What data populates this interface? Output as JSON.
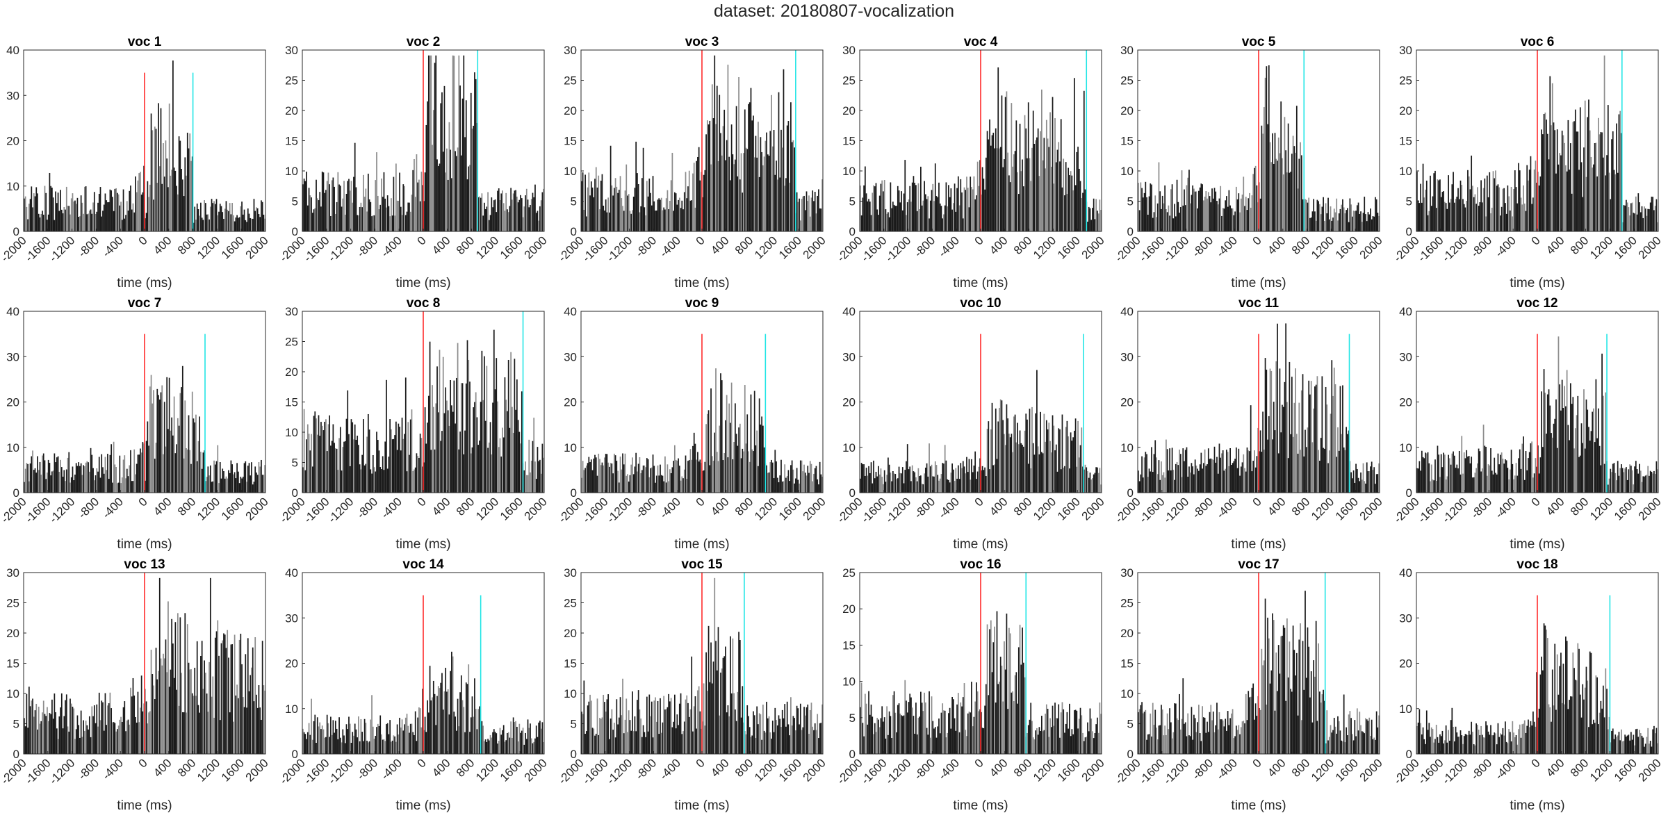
{
  "figure_title": "dataset: 20180807-vocalization",
  "colors": {
    "bars_dark": "#1a1a1a",
    "bars_light": "#8c8c8c",
    "onset_line": "#ff2a2a",
    "offset_line": "#22e5e5",
    "axes": "#262626"
  },
  "chart_data": [
    {
      "type": "bar",
      "title": "voc 1",
      "xlabel": "time (ms)",
      "xlim": [
        -2000,
        2000
      ],
      "ylim": [
        0,
        40
      ],
      "yticks": [
        0,
        10,
        20,
        30,
        40
      ],
      "xticks": [
        -2000,
        -1600,
        -1200,
        -800,
        -400,
        0,
        400,
        800,
        1200,
        1600,
        2000
      ],
      "onset_ms": 0,
      "offset_ms": 800,
      "marker_height": 35,
      "profile": {
        "base": 7,
        "peak": 20,
        "peak_time_ms": 200,
        "plateau_end_ms": 800,
        "post": 5
      }
    },
    {
      "type": "bar",
      "title": "voc 2",
      "xlabel": "time (ms)",
      "xlim": [
        -2000,
        2000
      ],
      "ylim": [
        0,
        30
      ],
      "yticks": [
        0,
        5,
        10,
        15,
        20,
        25,
        30
      ],
      "xticks": [
        -2000,
        -1600,
        -1200,
        -800,
        -400,
        0,
        400,
        800,
        1200,
        1600,
        2000
      ],
      "onset_ms": 0,
      "offset_ms": 900,
      "marker_height": 30,
      "profile": {
        "base": 7,
        "peak": 27,
        "peak_time_ms": 100,
        "plateau_end_ms": 900,
        "post": 5
      }
    },
    {
      "type": "bar",
      "title": "voc 3",
      "xlabel": "time (ms)",
      "xlim": [
        -2000,
        2000
      ],
      "ylim": [
        0,
        30
      ],
      "yticks": [
        0,
        5,
        10,
        15,
        20,
        25,
        30
      ],
      "xticks": [
        -2000,
        -1600,
        -1200,
        -800,
        -400,
        0,
        400,
        800,
        1200,
        1600,
        2000
      ],
      "onset_ms": 0,
      "offset_ms": 1550,
      "marker_height": 30,
      "profile": {
        "base": 7,
        "peak": 20,
        "peak_time_ms": 200,
        "plateau_end_ms": 1550,
        "post": 5
      }
    },
    {
      "type": "bar",
      "title": "voc 4",
      "xlabel": "time (ms)",
      "xlim": [
        -2000,
        2000
      ],
      "ylim": [
        0,
        30
      ],
      "yticks": [
        0,
        5,
        10,
        15,
        20,
        25,
        30
      ],
      "xticks": [
        -2000,
        -1600,
        -1200,
        -800,
        -400,
        0,
        400,
        800,
        1200,
        1600,
        2000
      ],
      "onset_ms": 0,
      "offset_ms": 1750,
      "marker_height": 30,
      "profile": {
        "base": 6,
        "peak": 19,
        "peak_time_ms": 200,
        "plateau_end_ms": 1750,
        "post": 4
      }
    },
    {
      "type": "bar",
      "title": "voc 5",
      "xlabel": "time (ms)",
      "xlim": [
        -2000,
        2000
      ],
      "ylim": [
        0,
        30
      ],
      "yticks": [
        0,
        5,
        10,
        15,
        20,
        25,
        30
      ],
      "xticks": [
        -2000,
        -1600,
        -1200,
        -800,
        -400,
        0,
        400,
        800,
        1200,
        1600,
        2000
      ],
      "onset_ms": 0,
      "offset_ms": 750,
      "marker_height": 30,
      "profile": {
        "base": 6,
        "peak": 20,
        "peak_time_ms": 100,
        "plateau_end_ms": 750,
        "post": 4
      }
    },
    {
      "type": "bar",
      "title": "voc 6",
      "xlabel": "time (ms)",
      "xlim": [
        -2000,
        2000
      ],
      "ylim": [
        0,
        30
      ],
      "yticks": [
        0,
        5,
        10,
        15,
        20,
        25,
        30
      ],
      "xticks": [
        -2000,
        -1600,
        -1200,
        -800,
        -400,
        0,
        400,
        800,
        1200,
        1600,
        2000
      ],
      "onset_ms": 0,
      "offset_ms": 1400,
      "marker_height": 30,
      "profile": {
        "base": 7,
        "peak": 18,
        "peak_time_ms": 150,
        "plateau_end_ms": 1400,
        "post": 4
      }
    },
    {
      "type": "bar",
      "title": "voc 7",
      "xlabel": "time (ms)",
      "xlim": [
        -2000,
        2000
      ],
      "ylim": [
        0,
        40
      ],
      "yticks": [
        0,
        10,
        20,
        30,
        40
      ],
      "xticks": [
        -2000,
        -1600,
        -1200,
        -800,
        -400,
        0,
        400,
        800,
        1200,
        1600,
        2000
      ],
      "onset_ms": 0,
      "offset_ms": 1000,
      "marker_height": 35,
      "profile": {
        "base": 6,
        "peak": 20,
        "peak_time_ms": 100,
        "plateau_end_ms": 1000,
        "post": 5
      }
    },
    {
      "type": "bar",
      "title": "voc 8",
      "xlabel": "time (ms)",
      "xlim": [
        -2000,
        2000
      ],
      "ylim": [
        0,
        30
      ],
      "yticks": [
        0,
        5,
        10,
        15,
        20,
        25,
        30
      ],
      "xticks": [
        -2000,
        -1600,
        -1200,
        -800,
        -400,
        0,
        400,
        800,
        1200,
        1600,
        2000
      ],
      "onset_ms": 0,
      "offset_ms": 1650,
      "marker_height": 30,
      "profile": {
        "base": 9,
        "peak": 19,
        "peak_time_ms": 300,
        "plateau_end_ms": 1650,
        "post": 6
      }
    },
    {
      "type": "bar",
      "title": "voc 9",
      "xlabel": "time (ms)",
      "xlim": [
        -2000,
        2000
      ],
      "ylim": [
        0,
        40
      ],
      "yticks": [
        0,
        10,
        20,
        30,
        40
      ],
      "xticks": [
        -2000,
        -1600,
        -1200,
        -800,
        -400,
        0,
        400,
        800,
        1200,
        1600,
        2000
      ],
      "onset_ms": 0,
      "offset_ms": 1050,
      "marker_height": 35,
      "profile": {
        "base": 6,
        "peak": 20,
        "peak_time_ms": 200,
        "plateau_end_ms": 1050,
        "post": 5
      }
    },
    {
      "type": "bar",
      "title": "voc 10",
      "xlabel": "time (ms)",
      "xlim": [
        -2000,
        2000
      ],
      "ylim": [
        0,
        40
      ],
      "yticks": [
        0,
        10,
        20,
        30,
        40
      ],
      "xticks": [
        -2000,
        -1600,
        -1200,
        -800,
        -400,
        0,
        400,
        800,
        1200,
        1600,
        2000
      ],
      "onset_ms": 0,
      "offset_ms": 1700,
      "marker_height": 35,
      "profile": {
        "base": 5,
        "peak": 15,
        "peak_time_ms": 200,
        "plateau_end_ms": 1700,
        "post": 4
      }
    },
    {
      "type": "bar",
      "title": "voc 11",
      "xlabel": "time (ms)",
      "xlim": [
        -2000,
        2000
      ],
      "ylim": [
        0,
        40
      ],
      "yticks": [
        0,
        10,
        20,
        30,
        40
      ],
      "xticks": [
        -2000,
        -1600,
        -1200,
        -800,
        -400,
        0,
        400,
        800,
        1200,
        1600,
        2000
      ],
      "onset_ms": 0,
      "offset_ms": 1500,
      "marker_height": 35,
      "profile": {
        "base": 7,
        "peak": 22,
        "peak_time_ms": 100,
        "plateau_end_ms": 1500,
        "post": 5
      }
    },
    {
      "type": "bar",
      "title": "voc 12",
      "xlabel": "time (ms)",
      "xlim": [
        -2000,
        2000
      ],
      "ylim": [
        0,
        40
      ],
      "yticks": [
        0,
        10,
        20,
        30,
        40
      ],
      "xticks": [
        -2000,
        -1600,
        -1200,
        -800,
        -400,
        0,
        400,
        800,
        1200,
        1600,
        2000
      ],
      "onset_ms": 0,
      "offset_ms": 1150,
      "marker_height": 35,
      "profile": {
        "base": 7,
        "peak": 20,
        "peak_time_ms": 100,
        "plateau_end_ms": 1150,
        "post": 5
      }
    },
    {
      "type": "bar",
      "title": "voc 13",
      "xlabel": "time (ms)",
      "xlim": [
        -2000,
        2000
      ],
      "ylim": [
        0,
        30
      ],
      "yticks": [
        0,
        5,
        10,
        15,
        20,
        25,
        30
      ],
      "xticks": [
        -2000,
        -1600,
        -1200,
        -800,
        -400,
        0,
        400,
        800,
        1200,
        1600,
        2000
      ],
      "onset_ms": 0,
      "offset_ms": null,
      "marker_height": 30,
      "profile": {
        "base": 7,
        "peak": 17,
        "peak_time_ms": 200,
        "plateau_end_ms": 2000,
        "post": 10
      }
    },
    {
      "type": "bar",
      "title": "voc 14",
      "xlabel": "time (ms)",
      "xlim": [
        -2000,
        2000
      ],
      "ylim": [
        0,
        40
      ],
      "yticks": [
        0,
        10,
        20,
        30,
        40
      ],
      "xticks": [
        -2000,
        -1600,
        -1200,
        -800,
        -400,
        0,
        400,
        800,
        1200,
        1600,
        2000
      ],
      "onset_ms": 0,
      "offset_ms": 950,
      "marker_height": 35,
      "profile": {
        "base": 6,
        "peak": 14,
        "peak_time_ms": 100,
        "plateau_end_ms": 950,
        "post": 5
      }
    },
    {
      "type": "bar",
      "title": "voc 15",
      "xlabel": "time (ms)",
      "xlim": [
        -2000,
        2000
      ],
      "ylim": [
        0,
        30
      ],
      "yticks": [
        0,
        5,
        10,
        15,
        20,
        25,
        30
      ],
      "xticks": [
        -2000,
        -1600,
        -1200,
        -800,
        -400,
        0,
        400,
        800,
        1200,
        1600,
        2000
      ],
      "onset_ms": 0,
      "offset_ms": 700,
      "marker_height": 30,
      "profile": {
        "base": 7,
        "peak": 18,
        "peak_time_ms": 150,
        "plateau_end_ms": 700,
        "post": 6
      }
    },
    {
      "type": "bar",
      "title": "voc 16",
      "xlabel": "time (ms)",
      "xlim": [
        -2000,
        2000
      ],
      "ylim": [
        0,
        25
      ],
      "yticks": [
        0,
        5,
        10,
        15,
        20,
        25
      ],
      "xticks": [
        -2000,
        -1600,
        -1200,
        -800,
        -400,
        0,
        400,
        800,
        1200,
        1600,
        2000
      ],
      "onset_ms": 0,
      "offset_ms": 750,
      "marker_height": 25,
      "profile": {
        "base": 6,
        "peak": 15,
        "peak_time_ms": 150,
        "plateau_end_ms": 750,
        "post": 5
      }
    },
    {
      "type": "bar",
      "title": "voc 17",
      "xlabel": "time (ms)",
      "xlim": [
        -2000,
        2000
      ],
      "ylim": [
        0,
        30
      ],
      "yticks": [
        0,
        5,
        10,
        15,
        20,
        25,
        30
      ],
      "xticks": [
        -2000,
        -1600,
        -1200,
        -800,
        -400,
        0,
        400,
        800,
        1200,
        1600,
        2000
      ],
      "onset_ms": 0,
      "offset_ms": 1100,
      "marker_height": 30,
      "profile": {
        "base": 6,
        "peak": 18,
        "peak_time_ms": 100,
        "plateau_end_ms": 1100,
        "post": 5
      }
    },
    {
      "type": "bar",
      "title": "voc 18",
      "xlabel": "time (ms)",
      "xlim": [
        -2000,
        2000
      ],
      "ylim": [
        0,
        40
      ],
      "yticks": [
        0,
        10,
        20,
        30,
        40
      ],
      "xticks": [
        -2000,
        -1600,
        -1200,
        -800,
        -400,
        0,
        400,
        800,
        1200,
        1600,
        2000
      ],
      "onset_ms": 0,
      "offset_ms": 1200,
      "marker_height": 35,
      "profile": {
        "base": 5,
        "peak": 20,
        "peak_time_ms": 100,
        "plateau_end_ms": 1200,
        "post": 4
      }
    }
  ]
}
